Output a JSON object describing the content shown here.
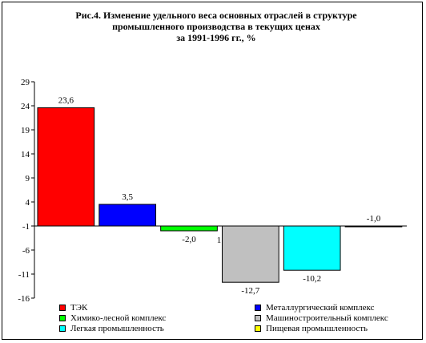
{
  "chart_data": {
    "type": "bar",
    "title_lines": [
      "Рис.4. Изменение удельного веса основных отраслей в структуре",
      "промышленного производства в текущих ценах",
      "за 1991-1996 гг., %"
    ],
    "xlabel": "",
    "ylabel": "",
    "ylim": [
      -16,
      29
    ],
    "yticks": [
      29,
      24,
      19,
      14,
      9,
      4,
      -1,
      -6,
      -11,
      -16
    ],
    "ytick_labels": [
      "29",
      "24",
      "19",
      "14",
      "9",
      "4",
      "-1",
      "-6",
      "-11",
      "-16"
    ],
    "baseline": -1,
    "grid": false,
    "legend_position": "bottom",
    "series": [
      {
        "name": "ТЭК",
        "value": 23.6,
        "label": "23,6",
        "color": "#ff0000"
      },
      {
        "name": "Металлургический комплекс",
        "value": 3.5,
        "label": "3,5",
        "color": "#0000ff"
      },
      {
        "name": "Химико-лесной комплекс",
        "value": -2.0,
        "label": "-2,0",
        "color": "#00ff00"
      },
      {
        "name": "Машиностроительный комплекс",
        "value": -12.7,
        "label": "-12,7",
        "color": "#c0c0c0"
      },
      {
        "name": "Легкая промышленность",
        "value": -10.2,
        "label": "-10,2",
        "color": "#00ffff"
      },
      {
        "name": "Пищевая промышленность",
        "value": -1.0,
        "label": "-1,0",
        "color": "#ffff00"
      }
    ],
    "stray_label": "1"
  }
}
